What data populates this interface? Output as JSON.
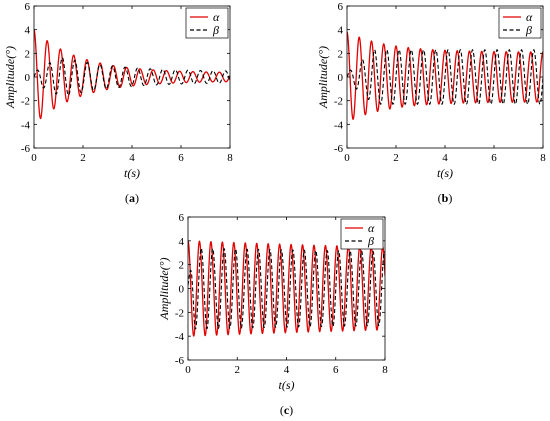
{
  "chart_data": [
    {
      "type": "line",
      "panel": "a",
      "caption": "(a)",
      "xlabel": "t(s)",
      "ylabel": "Amplitude(°)",
      "xlim": [
        0,
        8
      ],
      "ylim": [
        -6,
        6
      ],
      "xticks": [
        "0",
        "2",
        "4",
        "6",
        "8"
      ],
      "yticks": [
        "-6",
        "-4",
        "-2",
        "0",
        "2",
        "4",
        "6"
      ],
      "grid": false,
      "legend_position": "top-right",
      "series": [
        {
          "name": "α",
          "color": "#e00000",
          "dash": "solid",
          "model": {
            "amplitude": 4.0,
            "frequency_hz": 1.85,
            "decay_per_s": 0.55,
            "phase_rad": 1.5708,
            "offset": 0,
            "floor": 0.35,
            "growth_time_s": 0
          }
        },
        {
          "name": "β",
          "color": "#000000",
          "dash": "dashed",
          "model": {
            "amplitude": 2.5,
            "frequency_hz": 1.95,
            "decay_per_s": 0.45,
            "phase_rad": 0,
            "offset": 0,
            "floor": 0.45,
            "growth_time_s": 1.4
          }
        }
      ]
    },
    {
      "type": "line",
      "panel": "b",
      "caption": "(b)",
      "xlabel": "t(s)",
      "ylabel": "Amplitude(°)",
      "xlim": [
        0,
        8
      ],
      "ylim": [
        -6,
        6
      ],
      "xticks": [
        "0",
        "2",
        "4",
        "6",
        "8"
      ],
      "yticks": [
        "-6",
        "-4",
        "-2",
        "0",
        "2",
        "4",
        "6"
      ],
      "grid": false,
      "legend_position": "top-right",
      "series": [
        {
          "name": "α",
          "color": "#e00000",
          "dash": "solid",
          "model": {
            "amplitude": 3.8,
            "frequency_hz": 2.0,
            "decay_per_s": 0.6,
            "phase_rad": 1.5708,
            "offset": 0,
            "floor": 2.1,
            "growth_time_s": 0
          }
        },
        {
          "name": "β",
          "color": "#000000",
          "dash": "dashed",
          "model": {
            "amplitude": 2.3,
            "frequency_hz": 2.0,
            "decay_per_s": 0.0,
            "phase_rad": 0,
            "offset": 0,
            "floor": 2.3,
            "growth_time_s": 1.3
          }
        }
      ]
    },
    {
      "type": "line",
      "panel": "c",
      "caption": "(c)",
      "xlabel": "t(s)",
      "ylabel": "Amplitude(°)",
      "xlim": [
        0,
        8
      ],
      "ylim": [
        -6,
        6
      ],
      "xticks": [
        "0",
        "2",
        "4",
        "6",
        "8"
      ],
      "yticks": [
        "-6",
        "-4",
        "-2",
        "0",
        "2",
        "4",
        "6"
      ],
      "grid": false,
      "legend_position": "top-right",
      "series": [
        {
          "name": "α",
          "color": "#e00000",
          "dash": "solid",
          "model": {
            "amplitude": 4.0,
            "frequency_hz": 2.15,
            "decay_per_s": 0.06,
            "phase_rad": 1.5708,
            "offset": 0,
            "floor": 2.6,
            "growth_time_s": 0
          }
        },
        {
          "name": "β",
          "color": "#000000",
          "dash": "dashed",
          "model": {
            "amplitude": 3.4,
            "frequency_hz": 2.15,
            "decay_per_s": 0.05,
            "phase_rad": 0.6,
            "offset": 0,
            "floor": 2.5,
            "growth_time_s": 0.3
          }
        }
      ]
    }
  ]
}
